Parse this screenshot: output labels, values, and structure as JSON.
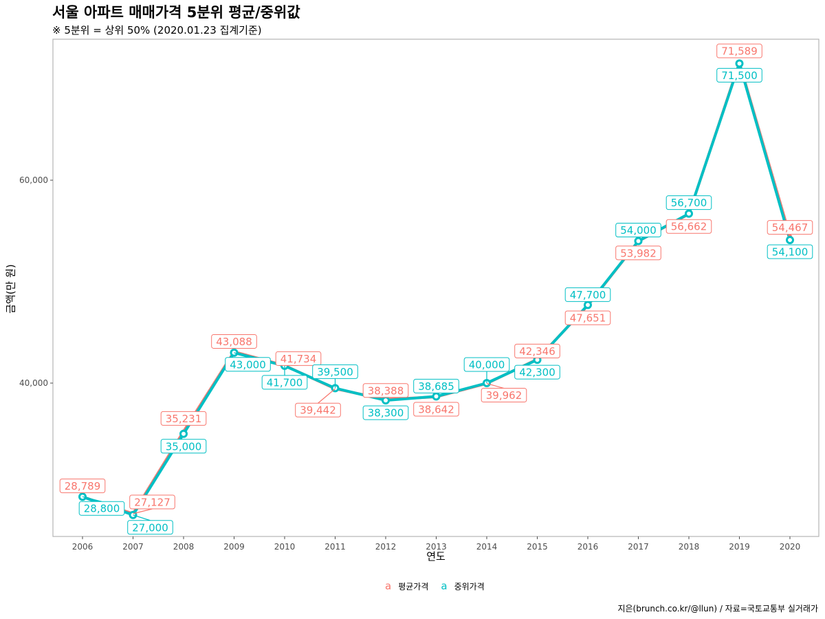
{
  "chart_data": {
    "type": "line",
    "title": "서울 아파트 매매가격 5분위 평균/중위값",
    "subtitle": "※ 5분위 = 상위 50% (2020.01.23 집계기준)",
    "xlabel": "연도",
    "ylabel": "금액(만 원)",
    "caption": "지은(brunch.co.kr/@llun) / 자료=국토교통부 실거래가",
    "categories": [
      "2006",
      "2007",
      "2008",
      "2009",
      "2010",
      "2011",
      "2012",
      "2013",
      "2014",
      "2015",
      "2016",
      "2017",
      "2018",
      "2019",
      "2020"
    ],
    "ylim": [
      25000,
      73500
    ],
    "yticks": [
      40000,
      60000
    ],
    "ytick_labels": [
      "40,000",
      "60,000"
    ],
    "grid": false,
    "legend_position": "bottom",
    "legend_key_glyph": "a",
    "series": [
      {
        "name": "평균가격",
        "color": "#F8766D",
        "values": [
          28789,
          27127,
          35231,
          43088,
          41734,
          39442,
          38388,
          38642,
          39962,
          42346,
          47651,
          53982,
          56662,
          71589,
          54467
        ],
        "labels": [
          "28,789",
          "27,127",
          "35,231",
          "43,088",
          "41,734",
          "39,442",
          "38,388",
          "38,642",
          "39,962",
          "42,346",
          "47,651",
          "53,982",
          "56,662",
          "71,589",
          "54,467"
        ]
      },
      {
        "name": "중위가격",
        "color": "#00BFC4",
        "values": [
          28800,
          27000,
          35000,
          43000,
          41700,
          39500,
          38300,
          38685,
          40000,
          42300,
          47700,
          54000,
          56700,
          71500,
          54100
        ],
        "labels": [
          "28,800",
          "27,000",
          "35,000",
          "43,000",
          "41,700",
          "39,500",
          "38,300",
          "38,685",
          "40,000",
          "42,300",
          "47,700",
          "54,000",
          "56,700",
          "71,500",
          "54,100"
        ]
      }
    ]
  }
}
